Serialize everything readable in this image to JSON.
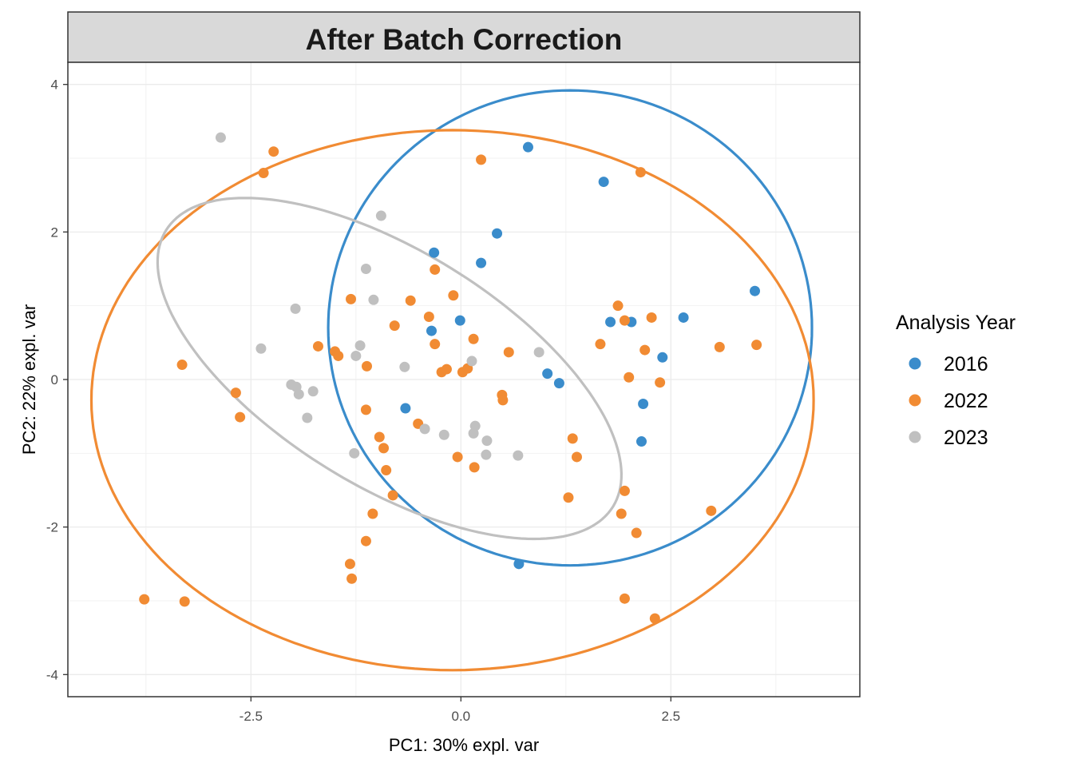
{
  "chart_data": {
    "type": "scatter",
    "title": "After Batch Correction",
    "xlabel": "PC1: 30% expl. var",
    "ylabel": "PC2: 22% expl. var",
    "xlim": [
      -4.68,
      4.75
    ],
    "ylim": [
      -4.3,
      4.3
    ],
    "x_ticks": [
      -2.5,
      0.0,
      2.5
    ],
    "x_tick_labels": [
      "-2.5",
      "0.0",
      "2.5"
    ],
    "y_ticks": [
      -4,
      -2,
      0,
      2,
      4
    ],
    "y_tick_labels": [
      "-4",
      "-2",
      "0",
      "2",
      "4"
    ],
    "grid": true,
    "legend": {
      "title": "Analysis Year",
      "position": "right"
    },
    "series": [
      {
        "name": "2016",
        "color": "#3a8ccb",
        "points": [
          [
            0.8,
            3.15
          ],
          [
            1.7,
            2.68
          ],
          [
            0.43,
            1.98
          ],
          [
            -0.32,
            1.72
          ],
          [
            0.24,
            1.58
          ],
          [
            3.5,
            1.2
          ],
          [
            2.65,
            0.84
          ],
          [
            1.78,
            0.78
          ],
          [
            2.03,
            0.78
          ],
          [
            -0.01,
            0.8
          ],
          [
            -0.35,
            0.66
          ],
          [
            2.4,
            0.3
          ],
          [
            1.03,
            0.08
          ],
          [
            1.17,
            -0.05
          ],
          [
            2.17,
            -0.33
          ],
          [
            -0.66,
            -0.39
          ],
          [
            2.15,
            -0.84
          ],
          [
            0.69,
            -2.5
          ]
        ],
        "ellipse": {
          "center": [
            1.3,
            0.7
          ],
          "rx": 2.88,
          "ry": 3.22,
          "angle_deg": 0
        }
      },
      {
        "name": "2022",
        "color": "#f18b33",
        "points": [
          [
            -2.23,
            3.09
          ],
          [
            -2.35,
            2.8
          ],
          [
            0.24,
            2.98
          ],
          [
            2.14,
            2.81
          ],
          [
            -0.31,
            1.49
          ],
          [
            -1.31,
            1.09
          ],
          [
            -0.6,
            1.07
          ],
          [
            -0.09,
            1.14
          ],
          [
            -0.38,
            0.85
          ],
          [
            1.87,
            1.0
          ],
          [
            -0.79,
            0.73
          ],
          [
            1.95,
            0.8
          ],
          [
            2.27,
            0.84
          ],
          [
            0.15,
            0.55
          ],
          [
            -1.7,
            0.45
          ],
          [
            -1.5,
            0.38
          ],
          [
            -0.31,
            0.48
          ],
          [
            1.66,
            0.48
          ],
          [
            0.57,
            0.37
          ],
          [
            3.08,
            0.44
          ],
          [
            3.52,
            0.47
          ],
          [
            -1.46,
            0.32
          ],
          [
            2.19,
            0.4
          ],
          [
            -3.32,
            0.2
          ],
          [
            -1.12,
            0.18
          ],
          [
            -0.23,
            0.1
          ],
          [
            0.02,
            0.1
          ],
          [
            -0.17,
            0.14
          ],
          [
            0.08,
            0.15
          ],
          [
            2.0,
            0.03
          ],
          [
            2.37,
            -0.04
          ],
          [
            -2.68,
            -0.18
          ],
          [
            0.49,
            -0.21
          ],
          [
            0.5,
            -0.28
          ],
          [
            -2.63,
            -0.51
          ],
          [
            -1.13,
            -0.41
          ],
          [
            -0.51,
            -0.6
          ],
          [
            -0.97,
            -0.78
          ],
          [
            1.33,
            -0.8
          ],
          [
            -0.92,
            -0.93
          ],
          [
            1.38,
            -1.05
          ],
          [
            -0.04,
            -1.05
          ],
          [
            0.16,
            -1.19
          ],
          [
            -0.89,
            -1.23
          ],
          [
            -0.81,
            -1.57
          ],
          [
            1.28,
            -1.6
          ],
          [
            1.95,
            -1.51
          ],
          [
            1.91,
            -1.82
          ],
          [
            2.09,
            -2.08
          ],
          [
            2.98,
            -1.78
          ],
          [
            -1.05,
            -1.82
          ],
          [
            -1.13,
            -2.19
          ],
          [
            -1.32,
            -2.5
          ],
          [
            -1.3,
            -2.7
          ],
          [
            -3.77,
            -2.98
          ],
          [
            -3.29,
            -3.01
          ],
          [
            1.95,
            -2.97
          ],
          [
            2.31,
            -3.24
          ]
        ],
        "ellipse": {
          "center": [
            -0.1,
            -0.28
          ],
          "rx": 4.3,
          "ry": 3.66,
          "angle_deg": 0
        }
      },
      {
        "name": "2023",
        "color": "#c0c0c0",
        "points": [
          [
            -2.86,
            3.28
          ],
          [
            -0.95,
            2.22
          ],
          [
            -1.13,
            1.5
          ],
          [
            -1.04,
            1.08
          ],
          [
            -1.97,
            0.96
          ],
          [
            -2.38,
            0.42
          ],
          [
            -1.2,
            0.46
          ],
          [
            -1.25,
            0.32
          ],
          [
            0.93,
            0.37
          ],
          [
            0.13,
            0.25
          ],
          [
            -0.67,
            0.17
          ],
          [
            -2.02,
            -0.07
          ],
          [
            -1.96,
            -0.1
          ],
          [
            -1.93,
            -0.2
          ],
          [
            -1.76,
            -0.16
          ],
          [
            -1.83,
            -0.52
          ],
          [
            0.17,
            -0.63
          ],
          [
            0.15,
            -0.73
          ],
          [
            -0.43,
            -0.67
          ],
          [
            -0.2,
            -0.75
          ],
          [
            0.31,
            -0.83
          ],
          [
            -1.27,
            -1.0
          ],
          [
            0.3,
            -1.02
          ],
          [
            0.68,
            -1.03
          ]
        ],
        "ellipse": {
          "center": [
            -0.85,
            0.15
          ],
          "rx": 3.26,
          "ry": 1.53,
          "angle_deg": -37
        }
      }
    ]
  }
}
